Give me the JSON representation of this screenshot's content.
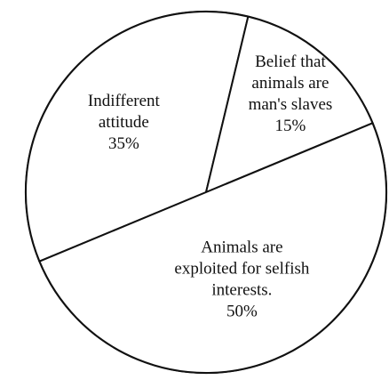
{
  "chart_data": {
    "type": "pie",
    "title": "",
    "slices": [
      {
        "label_lines": [
          "Indifferent",
          "attitude",
          "35%"
        ],
        "value": 35
      },
      {
        "label_lines": [
          "Belief that",
          "animals are",
          "man's slaves",
          "15%"
        ],
        "value": 15
      },
      {
        "label_lines": [
          "Animals are",
          "exploited for selfish",
          "interests.",
          "50%"
        ],
        "value": 50
      }
    ],
    "colors": {
      "line": "#111111",
      "fill": "#ffffff",
      "text": "#111111"
    }
  }
}
